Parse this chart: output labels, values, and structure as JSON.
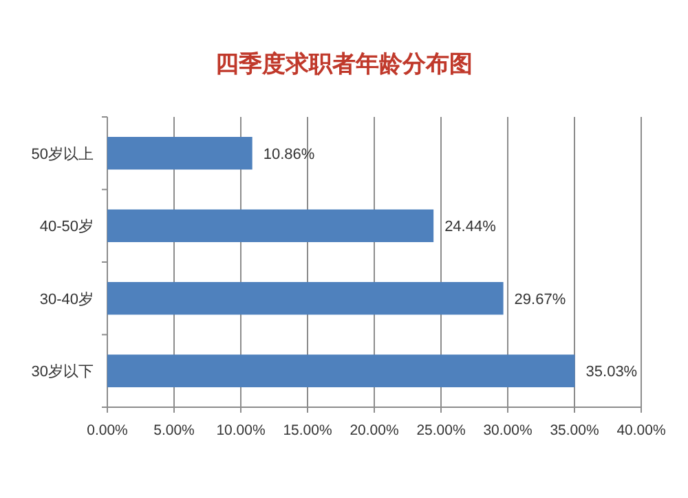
{
  "chart_data": {
    "type": "bar",
    "orientation": "horizontal",
    "title": "四季度求职者年龄分布图",
    "categories": [
      "50岁以上",
      "40-50岁",
      "30-40岁",
      "30岁以下"
    ],
    "values": [
      10.86,
      24.44,
      29.67,
      35.03
    ],
    "value_labels": [
      "10.86%",
      "24.44%",
      "29.67%",
      "35.03%"
    ],
    "color": "#4f81bd",
    "xlim": [
      0,
      40
    ],
    "xticks": [
      {
        "value": 0,
        "label": "0.00%"
      },
      {
        "value": 5,
        "label": "5.00%"
      },
      {
        "value": 10,
        "label": "10.00%"
      },
      {
        "value": 15,
        "label": "15.00%"
      },
      {
        "value": 20,
        "label": "20.00%"
      },
      {
        "value": 25,
        "label": "25.00%"
      },
      {
        "value": 30,
        "label": "30.00%"
      },
      {
        "value": 35,
        "label": "35.00%"
      },
      {
        "value": 40,
        "label": "40.00%"
      }
    ],
    "grid": "x"
  }
}
